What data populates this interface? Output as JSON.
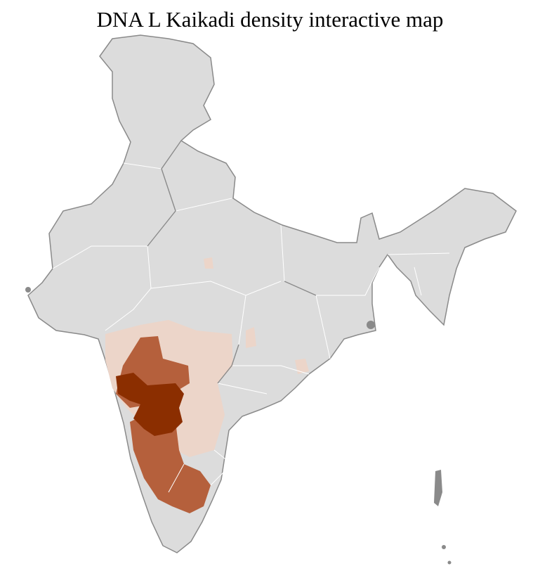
{
  "title": "DNA L Kaikadi density interactive map"
}
